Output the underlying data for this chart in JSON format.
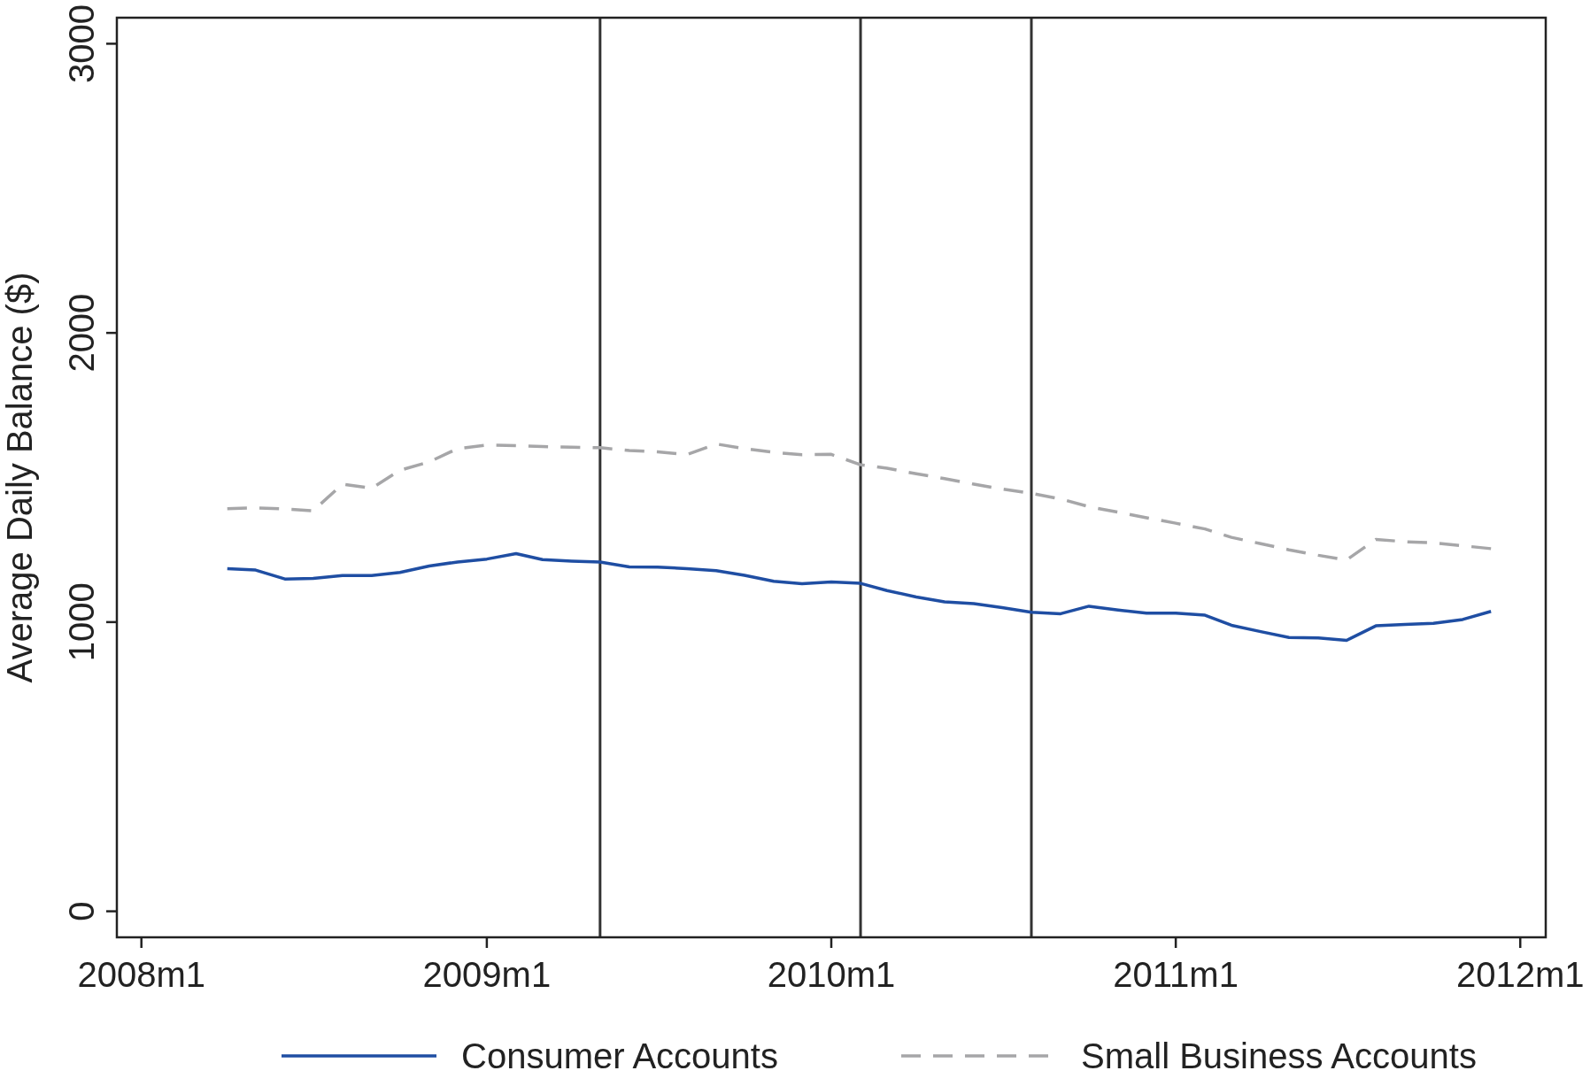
{
  "chart_data": {
    "type": "line",
    "ylabel": "Average Daily Balance ($)",
    "x": [
      "2008-04",
      "2008-05",
      "2008-06",
      "2008-07",
      "2008-08",
      "2008-09",
      "2008-10",
      "2008-11",
      "2008-12",
      "2009-01",
      "2009-02",
      "2009-03",
      "2009-04",
      "2009-05",
      "2009-06",
      "2009-07",
      "2009-08",
      "2009-09",
      "2009-10",
      "2009-11",
      "2009-12",
      "2010-01",
      "2010-02",
      "2010-03",
      "2010-04",
      "2010-05",
      "2010-06",
      "2010-07",
      "2010-08",
      "2010-09",
      "2010-10",
      "2010-11",
      "2010-12",
      "2011-01",
      "2011-02",
      "2011-03",
      "2011-04",
      "2011-05",
      "2011-06",
      "2011-07",
      "2011-08",
      "2011-09",
      "2011-10",
      "2011-11",
      "2011-12"
    ],
    "series": [
      {
        "name": "Consumer Accounts",
        "color": "#1f4ea3",
        "line_style": "solid",
        "values": [
          1185,
          1180,
          1149,
          1151,
          1161,
          1161,
          1172,
          1194,
          1208,
          1218,
          1237,
          1216,
          1211,
          1208,
          1191,
          1190,
          1185,
          1178,
          1162,
          1141,
          1133,
          1139,
          1134,
          1109,
          1087,
          1070,
          1064,
          1050,
          1034,
          1029,
          1055,
          1042,
          1031,
          1031,
          1024,
          989,
          967,
          947,
          945,
          937,
          987,
          992,
          996,
          1009,
          1037
        ]
      },
      {
        "name": "Small Business Accounts",
        "color": "#a6a6a8",
        "line_style": "dashed",
        "values": [
          1392,
          1395,
          1391,
          1385,
          1477,
          1463,
          1525,
          1554,
          1600,
          1612,
          1610,
          1607,
          1605,
          1603,
          1593,
          1589,
          1579,
          1616,
          1600,
          1587,
          1579,
          1580,
          1544,
          1532,
          1513,
          1496,
          1477,
          1460,
          1445,
          1426,
          1399,
          1380,
          1361,
          1342,
          1322,
          1293,
          1271,
          1250,
          1231,
          1215,
          1286,
          1278,
          1274,
          1264,
          1254
        ]
      }
    ],
    "xlim": [
      "2007-12-06",
      "2012-01-28"
    ],
    "xticks": [
      {
        "value": "2008-01",
        "label": "2008m1"
      },
      {
        "value": "2009-01",
        "label": "2009m1"
      },
      {
        "value": "2010-01",
        "label": "2010m1"
      },
      {
        "value": "2011-01",
        "label": "2011m1"
      },
      {
        "value": "2012-01",
        "label": "2012m1"
      }
    ],
    "ylim": [
      -90,
      3090
    ],
    "yticks": [
      0,
      1000,
      2000,
      3000
    ],
    "ref_lines": [
      {
        "axis": "x",
        "value": "2009-05",
        "color": "#333333"
      },
      {
        "axis": "x",
        "value": "2010-02",
        "color": "#333333"
      },
      {
        "axis": "x",
        "value": "2010-08",
        "color": "#333333"
      }
    ],
    "grid": false,
    "legend": "bottom"
  }
}
